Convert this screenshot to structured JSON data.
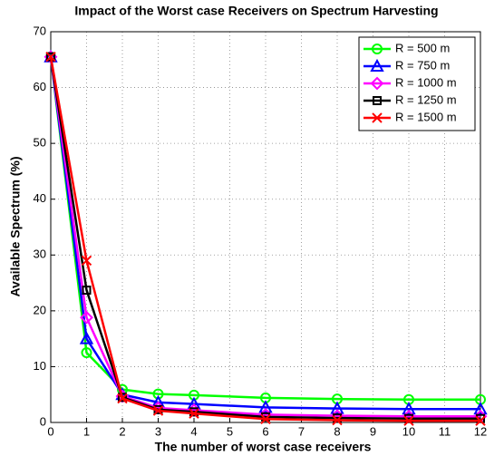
{
  "chart_data": {
    "type": "line",
    "title": "Impact of the Worst case Receivers on Spectrum Harvesting",
    "x_label": "The number of worst case receivers",
    "y_label": "Available Spectrum (%)",
    "x": [
      0,
      1,
      2,
      3,
      4,
      6,
      8,
      10,
      12
    ],
    "series": [
      {
        "name": "R = 500 m",
        "color": "#00ff00",
        "marker": "circle",
        "values": [
          65.5,
          12.5,
          5.9,
          5.1,
          4.9,
          4.4,
          4.2,
          4.1,
          4.1
        ]
      },
      {
        "name": "R = 750 m",
        "color": "#0000ff",
        "marker": "triangle",
        "values": [
          65.5,
          15,
          5.0,
          3.6,
          3.3,
          2.7,
          2.5,
          2.4,
          2.4
        ]
      },
      {
        "name": "R = 1000 m",
        "color": "#ff00ff",
        "marker": "diamond",
        "values": [
          65.5,
          18.8,
          4.7,
          2.6,
          2.2,
          1.4,
          1.2,
          1.1,
          1.1
        ]
      },
      {
        "name": "R = 1250 m",
        "color": "#000000",
        "marker": "square",
        "values": [
          65.5,
          23.7,
          4.5,
          2.3,
          1.9,
          1.0,
          0.8,
          0.7,
          0.7
        ]
      },
      {
        "name": "R = 1500 m",
        "color": "#ff0000",
        "marker": "x",
        "values": [
          65.5,
          29,
          4.3,
          2.1,
          1.6,
          0.6,
          0.4,
          0.3,
          0.3
        ]
      }
    ],
    "xlim": [
      0,
      12
    ],
    "xticks": [
      0,
      1,
      2,
      3,
      4,
      5,
      6,
      7,
      8,
      9,
      10,
      11,
      12
    ],
    "ylim": [
      0,
      70
    ],
    "yticks": [
      0,
      10,
      20,
      30,
      40,
      50,
      60,
      70
    ],
    "grid": true,
    "legend": "upper right"
  }
}
